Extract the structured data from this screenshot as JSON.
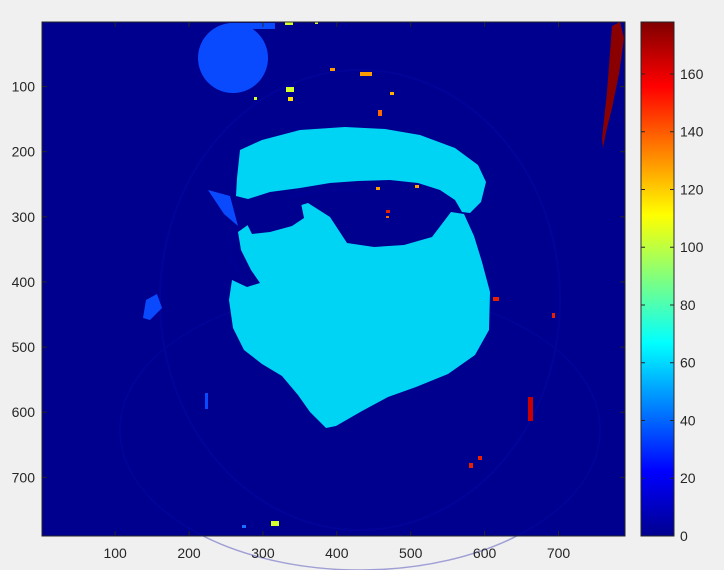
{
  "chart_data": {
    "type": "heatmap",
    "title": "",
    "xlabel": "",
    "ylabel": "",
    "xlim": [
      1,
      790
    ],
    "ylim": [
      1,
      790
    ],
    "y_direction": "reverse",
    "x_ticks": [
      100,
      200,
      300,
      400,
      500,
      600,
      700
    ],
    "y_ticks": [
      100,
      200,
      300,
      400,
      500,
      600,
      700
    ],
    "colormap": "jet",
    "clim": [
      0,
      178
    ],
    "colorbar_ticks": [
      0,
      20,
      40,
      60,
      80,
      100,
      120,
      140,
      160
    ],
    "grid": false,
    "regions": [
      {
        "label": "background",
        "value": 5
      },
      {
        "label": "face",
        "value": 56
      },
      {
        "label": "ball",
        "value": 30
      },
      {
        "label": "jacket-patch",
        "value": 30
      },
      {
        "label": "edge-strip",
        "value": 175
      },
      {
        "label": "small-speckles",
        "value": 150
      }
    ]
  },
  "colors": {
    "background": "#00008f",
    "face": "#00d4f5",
    "ball": "#0a4aff",
    "edge_strip": "#8a0000",
    "speckle_orange": "#ff9c00",
    "speckle_yellow": "#d4ff2c",
    "speckle_red": "#e82000"
  }
}
